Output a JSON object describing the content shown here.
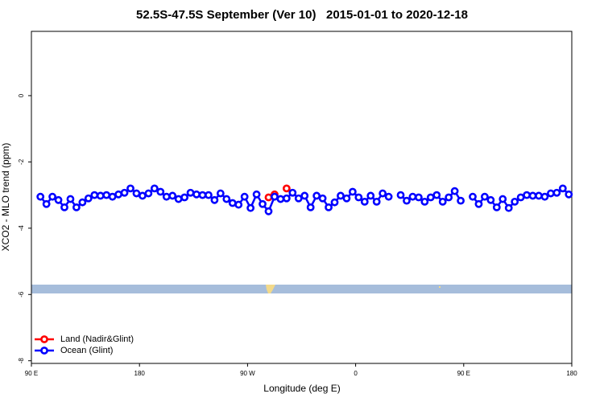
{
  "chart_data": {
    "type": "line",
    "title": "52.5S-47.5S September (Ver 10)   2015-01-01 to 2020-12-18",
    "x_label": "Longitude (deg E)",
    "y_label": "XCO2 - MLO trend (ppm)",
    "xlim": [
      90,
      540
    ],
    "xticks": [
      {
        "value": 90,
        "label": "90 E"
      },
      {
        "value": 180,
        "label": "180"
      },
      {
        "value": 270,
        "label": "90 W"
      },
      {
        "value": 360,
        "label": "0"
      },
      {
        "value": 450,
        "label": "90 E"
      },
      {
        "value": 540,
        "label": "180"
      }
    ],
    "ylim": [
      -8.08,
      1.94
    ],
    "yticks": [
      0,
      -2,
      -4,
      -6,
      -8
    ],
    "legend": "bottom-left",
    "series": [
      {
        "name": "Land (Nadir&Glint)",
        "color": "#ff0000",
        "x": [
          287.5,
          292.5,
          297.5,
          302.5
        ],
        "values": [
          -3.07,
          -2.98,
          null,
          -2.8
        ]
      },
      {
        "name": "Ocean (Glint)",
        "color": "#0000ff",
        "x": [
          97.5,
          102.5,
          107.5,
          112.5,
          117.5,
          122.5,
          127.5,
          132.5,
          137.5,
          142.5,
          147.5,
          152.5,
          157.5,
          162.5,
          167.5,
          172.5,
          177.5,
          182.5,
          187.5,
          192.5,
          197.5,
          202.5,
          207.5,
          212.5,
          217.5,
          222.5,
          227.5,
          232.5,
          237.5,
          242.5,
          247.5,
          252.5,
          257.5,
          262.5,
          267.5,
          272.5,
          277.5,
          282.5,
          287.5,
          292.5,
          297.5,
          302.5,
          307.5,
          312.5,
          317.5,
          322.5,
          327.5,
          332.5,
          337.5,
          342.5,
          347.5,
          352.5,
          357.5,
          362.5,
          367.5,
          372.5,
          377.5,
          382.5,
          387.5,
          392.5,
          397.5,
          402.5,
          407.5,
          412.5,
          417.5,
          422.5,
          427.5,
          432.5,
          437.5,
          442.5,
          447.5,
          452.5,
          457.5,
          462.5,
          467.5,
          472.5,
          477.5,
          482.5,
          487.5,
          492.5,
          497.5,
          502.5,
          507.5,
          512.5,
          517.5,
          522.5,
          527.5,
          532.5,
          537.5
        ],
        "values": [
          -3.05,
          -3.27,
          -3.05,
          -3.15,
          -3.37,
          -3.12,
          -3.37,
          -3.22,
          -3.1,
          -3.0,
          -3.02,
          -3.0,
          -3.05,
          -2.98,
          -2.93,
          -2.8,
          -2.95,
          -3.02,
          -2.95,
          -2.8,
          -2.9,
          -3.05,
          -3.02,
          -3.12,
          -3.07,
          -2.93,
          -2.98,
          -3.0,
          -3.0,
          -3.15,
          -2.95,
          -3.12,
          -3.24,
          -3.29,
          -3.05,
          -3.39,
          -2.98,
          -3.27,
          -3.49,
          -3.05,
          -3.12,
          -3.1,
          -2.93,
          -3.1,
          -3.02,
          -3.37,
          -3.02,
          -3.1,
          -3.37,
          -3.22,
          -3.02,
          -3.1,
          -2.9,
          -3.07,
          -3.2,
          -3.02,
          -3.2,
          -2.95,
          -3.05,
          null,
          -3.0,
          -3.17,
          -3.05,
          -3.07,
          -3.2,
          -3.07,
          -3.0,
          -3.2,
          -3.07,
          -2.88,
          -3.17,
          null,
          -3.05,
          -3.27,
          -3.05,
          -3.15,
          -3.37,
          -3.12,
          -3.39,
          -3.2,
          -3.07,
          -3.0,
          -3.02,
          -3.02,
          -3.05,
          -2.95,
          -2.93,
          -2.8,
          -2.98
        ]
      }
    ]
  }
}
